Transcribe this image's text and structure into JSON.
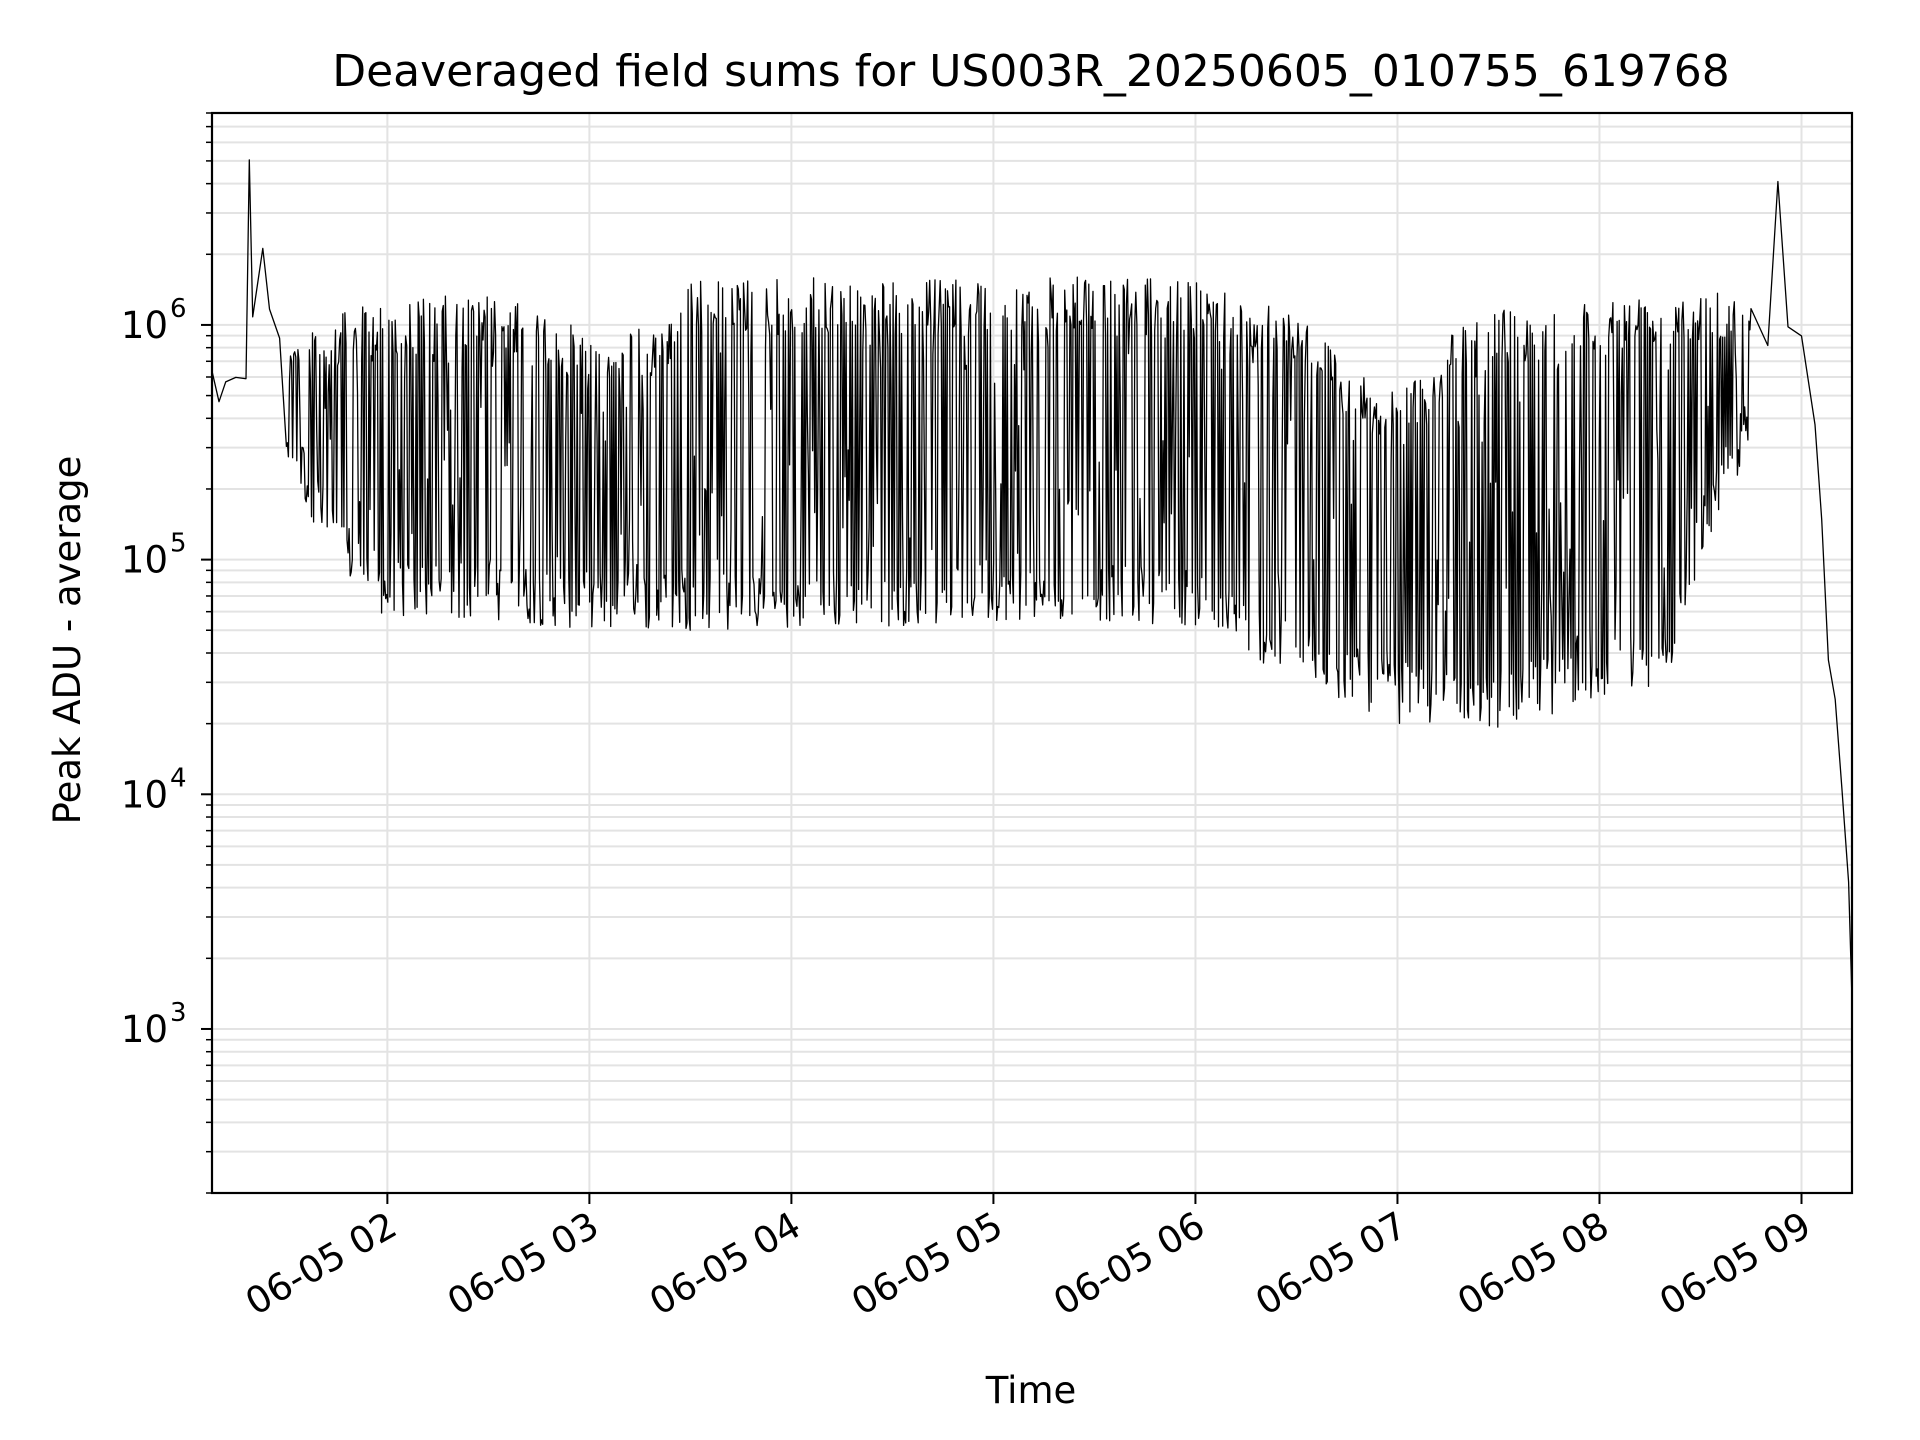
{
  "chart_data": {
    "type": "line",
    "title": "Deaveraged field sums for US003R_20250605_010755_619768",
    "xlabel": "Time",
    "ylabel": "Peak ADU - average",
    "yscale": "log",
    "ylim": [
      200,
      8000000
    ],
    "xlim": [
      "06-05 01:07:55",
      "06-05 09:15"
    ],
    "grid": true,
    "x_ticks": [
      {
        "label": "06-05 02",
        "hour": 2
      },
      {
        "label": "06-05 03",
        "hour": 3
      },
      {
        "label": "06-05 04",
        "hour": 4
      },
      {
        "label": "06-05 05",
        "hour": 5
      },
      {
        "label": "06-05 06",
        "hour": 6
      },
      {
        "label": "06-05 07",
        "hour": 7
      },
      {
        "label": "06-05 08",
        "hour": 8
      },
      {
        "label": "06-05 09",
        "hour": 9
      }
    ],
    "y_ticks": [
      {
        "base": "10",
        "exp": "3",
        "value": 1000
      },
      {
        "base": "10",
        "exp": "4",
        "value": 10000
      },
      {
        "base": "10",
        "exp": "5",
        "value": 100000
      },
      {
        "base": "10",
        "exp": "6",
        "value": 1000000
      }
    ],
    "series": [
      {
        "color": "#000000",
        "points": [
          [
            "06-05 01:08",
            600000
          ],
          [
            "06-05 01:10",
            500000
          ],
          [
            "06-05 01:12",
            550000
          ],
          [
            "06-05 01:15",
            520000
          ],
          [
            "06-05 01:18",
            560000
          ],
          [
            "06-05 01:19",
            4800000
          ],
          [
            "06-05 01:20",
            1200000
          ],
          [
            "06-05 01:23",
            1900000
          ],
          [
            "06-05 01:25",
            1100000
          ],
          [
            "06-05 01:28",
            800000
          ],
          [
            "06-05 01:30",
            500000
          ],
          [
            "06-05 01:33",
            280000
          ],
          [
            "06-05 01:38",
            250000
          ],
          [
            "06-05 01:43",
            180000
          ],
          [
            "06-05 01:48",
            120000
          ],
          [
            "06-05 01:53",
            100000
          ],
          [
            "06-05 01:58",
            90000
          ],
          [
            "06-05 02:10",
            85000
          ],
          [
            "06-05 02:30",
            90000
          ],
          [
            "06-05 02:50",
            85000
          ],
          [
            "06-05 03:00",
            80000
          ],
          [
            "06-05 03:30",
            75000
          ],
          [
            "06-05 04:00",
            70000
          ],
          [
            "06-05 04:30",
            75000
          ],
          [
            "06-05 05:00",
            80000
          ],
          [
            "06-05 05:30",
            75000
          ],
          [
            "06-05 06:00",
            70000
          ],
          [
            "06-05 06:20",
            60000
          ],
          [
            "06-05 06:40",
            45000
          ],
          [
            "06-05 07:00",
            35000
          ],
          [
            "06-05 07:20",
            28000
          ],
          [
            "06-05 07:40",
            27000
          ],
          [
            "06-05 08:00",
            30000
          ],
          [
            "06-05 08:20",
            40000
          ],
          [
            "06-05 08:30",
            70000
          ],
          [
            "06-05 08:40",
            200000
          ],
          [
            "06-05 08:50",
            800000
          ],
          [
            "06-05 08:53",
            4000000
          ],
          [
            "06-05 08:56",
            1000000
          ],
          [
            "06-05 09:00",
            900000
          ],
          [
            "06-05 09:04",
            400000
          ],
          [
            "06-05 09:06",
            150000
          ],
          [
            "06-05 09:08",
            40000
          ],
          [
            "06-05 09:10",
            25000
          ],
          [
            "06-05 09:12",
            10000
          ],
          [
            "06-05 09:14",
            4000
          ],
          [
            "06-05 09:15",
            1300
          ]
        ],
        "upper_envelope": [
          [
            "06-05 01:30",
            900000
          ],
          [
            "06-05 01:45",
            1100000
          ],
          [
            "06-05 02:00",
            1300000
          ],
          [
            "06-05 02:30",
            1350000
          ],
          [
            "06-05 02:50",
            1100000
          ],
          [
            "06-05 03:00",
            900000
          ],
          [
            "06-05 03:20",
            1000000
          ],
          [
            "06-05 03:30",
            1550000
          ],
          [
            "06-05 04:00",
            1600000
          ],
          [
            "06-05 04:30",
            1550000
          ],
          [
            "06-05 05:00",
            1600000
          ],
          [
            "06-05 05:30",
            1600000
          ],
          [
            "06-05 06:00",
            1550000
          ],
          [
            "06-05 06:30",
            1200000
          ],
          [
            "06-05 06:45",
            700000
          ],
          [
            "06-05 07:00",
            500000
          ],
          [
            "06-05 07:15",
            900000
          ],
          [
            "06-05 07:30",
            1200000
          ],
          [
            "06-05 08:00",
            1300000
          ],
          [
            "06-05 08:30",
            1500000
          ],
          [
            "06-05 08:45",
            1600000
          ]
        ],
        "lower_envelope": [
          [
            "06-05 01:30",
            250000
          ],
          [
            "06-05 01:45",
            90000
          ],
          [
            "06-05 02:00",
            55000
          ],
          [
            "06-05 02:30",
            55000
          ],
          [
            "06-05 03:00",
            50000
          ],
          [
            "06-05 03:30",
            50000
          ],
          [
            "06-05 04:00",
            50000
          ],
          [
            "06-05 04:30",
            52000
          ],
          [
            "06-05 05:00",
            55000
          ],
          [
            "06-05 05:30",
            55000
          ],
          [
            "06-05 06:00",
            52000
          ],
          [
            "06-05 06:30",
            30000
          ],
          [
            "06-05 07:00",
            20000
          ],
          [
            "06-05 07:30",
            19000
          ],
          [
            "06-05 08:00",
            25000
          ],
          [
            "06-05 08:20",
            30000
          ],
          [
            "06-05 08:30",
            100000
          ],
          [
            "06-05 08:45",
            300000
          ]
        ]
      }
    ]
  }
}
